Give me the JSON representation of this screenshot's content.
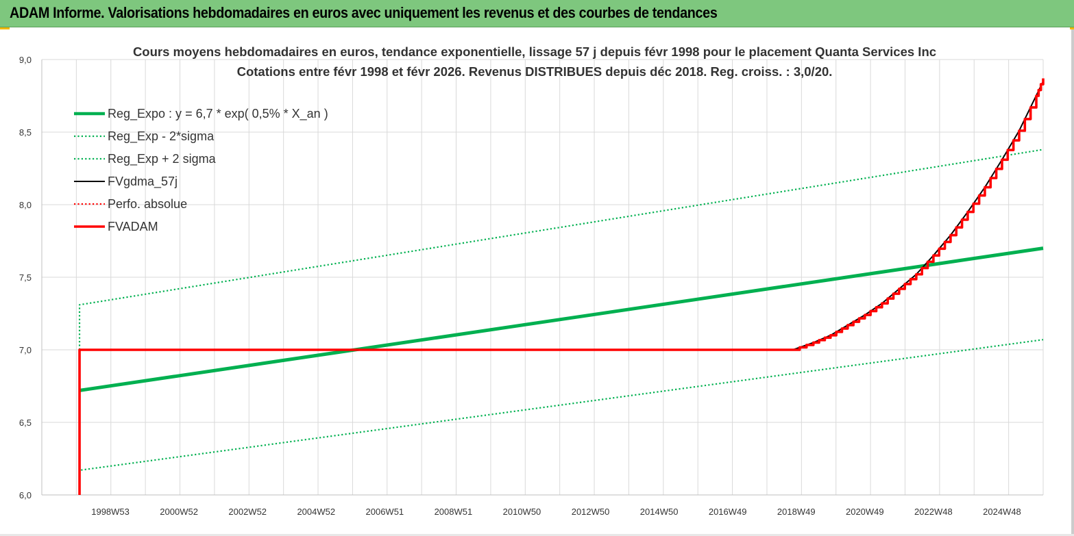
{
  "banner": {
    "title": "ADAM Informe. Valorisations hebdomadaires en euros avec uniquement les revenus et des courbes de tendances"
  },
  "colors": {
    "green": "#00b050",
    "black": "#000000",
    "red": "#ff0000",
    "banner": "#7ec77e"
  },
  "chart_data": {
    "type": "line",
    "title": "Cours moyens hebdomadaires en euros, tendance exponentielle, lissage 57 j depuis févr 1998 pour le placement Quanta Services Inc",
    "subtitle": "Cotations entre févr 1998 et févr 2026. Revenus DISTRIBUES depuis déc 2018. Reg. croiss. : 3,0/20.",
    "xlabel": "",
    "ylabel": "",
    "ylim": [
      6.0,
      9.0
    ],
    "xlim": [
      1997.0,
      2026.2
    ],
    "y_ticks": [
      "6,0",
      "6,5",
      "7,0",
      "7,5",
      "8,0",
      "8,5",
      "9,0"
    ],
    "x_ticks": [
      {
        "label": "1998W53",
        "x": 1999.0
      },
      {
        "label": "2000W52",
        "x": 2001.0
      },
      {
        "label": "2002W52",
        "x": 2003.0
      },
      {
        "label": "2004W52",
        "x": 2005.0
      },
      {
        "label": "2006W51",
        "x": 2007.0
      },
      {
        "label": "2008W51",
        "x": 2009.0
      },
      {
        "label": "2010W50",
        "x": 2011.0
      },
      {
        "label": "2012W50",
        "x": 2013.0
      },
      {
        "label": "2014W50",
        "x": 2015.0
      },
      {
        "label": "2016W49",
        "x": 2017.0
      },
      {
        "label": "2018W49",
        "x": 2019.0
      },
      {
        "label": "2020W49",
        "x": 2021.0
      },
      {
        "label": "2022W48",
        "x": 2023.0
      },
      {
        "label": "2024W48",
        "x": 2025.0
      }
    ],
    "grid": true,
    "legend": "top-left",
    "series": [
      {
        "name": "Reg_Expo : y = 6,7 * exp( 0,5% *  X_an )",
        "style": "solid-thick",
        "color": "#00b050",
        "x": [
          1998.1,
          2026.2
        ],
        "y": [
          6.72,
          7.7
        ]
      },
      {
        "name": "Reg_Exp - 2*sigma",
        "style": "dotted",
        "color": "#00b050",
        "x": [
          1998.1,
          1998.1,
          2026.2
        ],
        "y": [
          7.0,
          6.17,
          7.07
        ]
      },
      {
        "name": "Reg_Exp + 2 sigma",
        "style": "dotted",
        "color": "#00b050",
        "x": [
          1998.1,
          1998.1,
          2026.2
        ],
        "y": [
          7.0,
          7.31,
          8.38
        ]
      },
      {
        "name": "FVgdma_57j",
        "style": "solid",
        "color": "#000000",
        "x": [
          1998.1,
          2018.9,
          2019.5,
          2020.0,
          2020.5,
          2021.0,
          2021.5,
          2022.0,
          2022.5,
          2023.0,
          2023.5,
          2024.0,
          2024.5,
          2025.0,
          2025.5,
          2026.2
        ],
        "y": [
          7.0,
          7.0,
          7.05,
          7.1,
          7.17,
          7.24,
          7.32,
          7.42,
          7.52,
          7.65,
          7.79,
          7.95,
          8.12,
          8.31,
          8.51,
          8.85
        ]
      },
      {
        "name": "Perfo. absolue",
        "style": "dotted",
        "color": "#ff0000",
        "x": [
          1998.1,
          2018.9
        ],
        "y": [
          7.0,
          7.0
        ]
      },
      {
        "name": "FVADAM",
        "style": "solid-thick-staircase",
        "color": "#ff0000",
        "x": [
          1998.1,
          1998.1,
          2018.9,
          2019.5,
          2020.0,
          2020.5,
          2021.0,
          2021.5,
          2022.0,
          2022.5,
          2023.0,
          2023.5,
          2024.0,
          2024.5,
          2025.0,
          2025.5,
          2026.0,
          2026.2
        ],
        "y": [
          6.0,
          7.0,
          7.0,
          7.05,
          7.1,
          7.17,
          7.24,
          7.32,
          7.42,
          7.52,
          7.65,
          7.79,
          7.95,
          8.12,
          8.31,
          8.51,
          8.75,
          8.87
        ]
      }
    ]
  }
}
